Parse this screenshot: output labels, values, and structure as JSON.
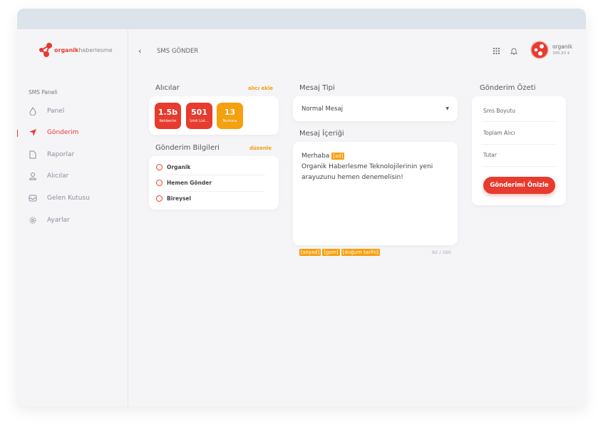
{
  "brand": {
    "logo_bold": "organik",
    "logo_rest": "haberlesme",
    "accent": "#e63b2e",
    "warn": "#f5a00f"
  },
  "sidebar": {
    "section": "SMS Paneli",
    "items": [
      {
        "label": "Panel",
        "icon": "fire-icon"
      },
      {
        "label": "Gönderim",
        "icon": "send-icon",
        "active": true
      },
      {
        "label": "Raporlar",
        "icon": "file-icon"
      },
      {
        "label": "Alıcılar",
        "icon": "user-icon"
      },
      {
        "label": "Gelen Kutusu",
        "icon": "inbox-icon"
      },
      {
        "label": "Ayarlar",
        "icon": "gear-icon"
      }
    ]
  },
  "header": {
    "back": "‹",
    "title": "SMS GÖNDER",
    "user": "organik",
    "balance": "386.83 ₺"
  },
  "recipients": {
    "title": "Alıcılar",
    "add": "alıcı ekle",
    "tiles": [
      {
        "value": "1.5b",
        "label": "Rehberim"
      },
      {
        "value": "501",
        "label": "İzinli List..."
      },
      {
        "value": "13",
        "label": "Numara"
      }
    ]
  },
  "info": {
    "title": "Gönderim Bilgileri",
    "edit": "düzenle",
    "rows": [
      "Organik",
      "Hemen Gönder",
      "Bireysel"
    ]
  },
  "message": {
    "type_title": "Mesaj Tipi",
    "type_value": "Normal Mesaj",
    "content_title": "Mesaj İçeriği",
    "line1": "Merhaba",
    "tag": "[ad]",
    "body": "Organik Haberlesme Teknolojilerinin yeni arayuzunu hemen denemelisin!",
    "tags": [
      "[soyad]",
      "[gsm]",
      "[doğum tarihi]"
    ],
    "counter": "82 / 160"
  },
  "summary": {
    "title": "Gönderim Özeti",
    "rows": [
      "Sms Boyutu",
      "Toplam Alıcı",
      "Tutar"
    ],
    "button": "Gönderimi Önizle"
  }
}
